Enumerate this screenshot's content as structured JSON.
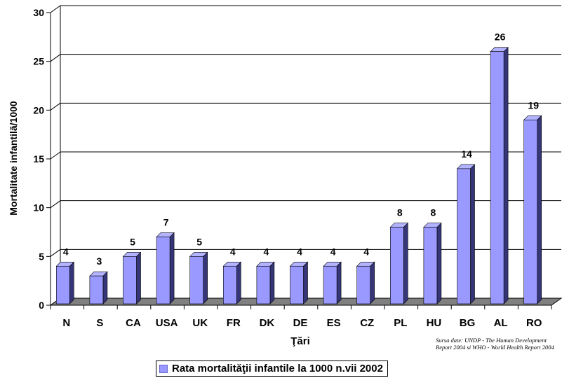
{
  "chart_data": {
    "type": "bar",
    "title": "",
    "xlabel": "Ţări",
    "ylabel": "Mortalitate infantilă/1000",
    "categories": [
      "N",
      "S",
      "CA",
      "USA",
      "UK",
      "FR",
      "DK",
      "DE",
      "ES",
      "CZ",
      "PL",
      "HU",
      "BG",
      "AL",
      "RO"
    ],
    "series": [
      {
        "name": "Rata mortalităţii infantile la 1000 n.vii 2002",
        "values": [
          4,
          3,
          5,
          7,
          5,
          4,
          4,
          4,
          4,
          4,
          8,
          8,
          14,
          26,
          19
        ]
      }
    ],
    "ylim": [
      0,
      30
    ],
    "yticks": [
      0,
      5,
      10,
      15,
      20,
      25,
      30
    ],
    "grid": true,
    "legend_position": "bottom",
    "bar_color": "#9999ff",
    "floor_color": "#808080"
  },
  "source_note": "Sursa date: UNDP - The Human Development Report 2004 si WHO - World Health Report 2004"
}
